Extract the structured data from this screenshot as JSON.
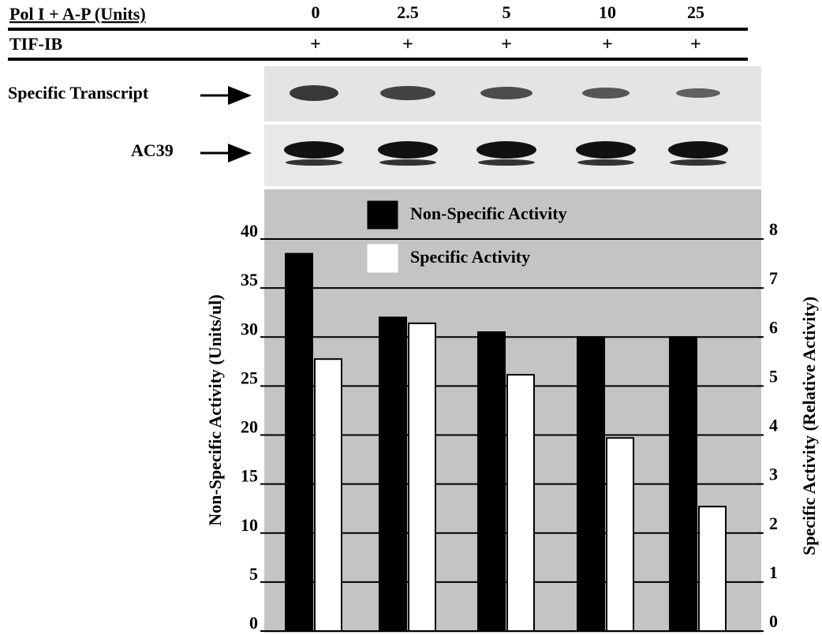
{
  "chart_data": {
    "type": "bar",
    "x_label": "Pol I + A-P (Units)",
    "categories": [
      "0",
      "2.5",
      "5",
      "10",
      "25"
    ],
    "series": [
      {
        "name": "Non-Specific Activity",
        "color": "#000000",
        "values": [
          38.5,
          32,
          30.5,
          30,
          30
        ]
      },
      {
        "name": "Specific Activity",
        "color": "#ffffff",
        "axis": "y2",
        "values": [
          5.55,
          6.28,
          5.23,
          3.94,
          2.54
        ]
      }
    ],
    "y_label": "Non-Specific Activity (Units/ul)",
    "y2_label": "Specific Activity (Relative Activity)",
    "ylim": [
      0,
      40
    ],
    "yticks": [
      0,
      5,
      10,
      15,
      20,
      25,
      30,
      35,
      40
    ],
    "y2lim": [
      0,
      8
    ],
    "y2ticks": [
      0,
      1,
      2,
      3,
      4,
      5,
      6,
      7,
      8
    ],
    "grid": true
  },
  "header": {
    "row2_label": "TIF-IB",
    "row2_values": [
      "+",
      "+",
      "+",
      "+",
      "+"
    ]
  },
  "gels": {
    "labels": [
      "Specific Transcript",
      "AC39"
    ]
  }
}
